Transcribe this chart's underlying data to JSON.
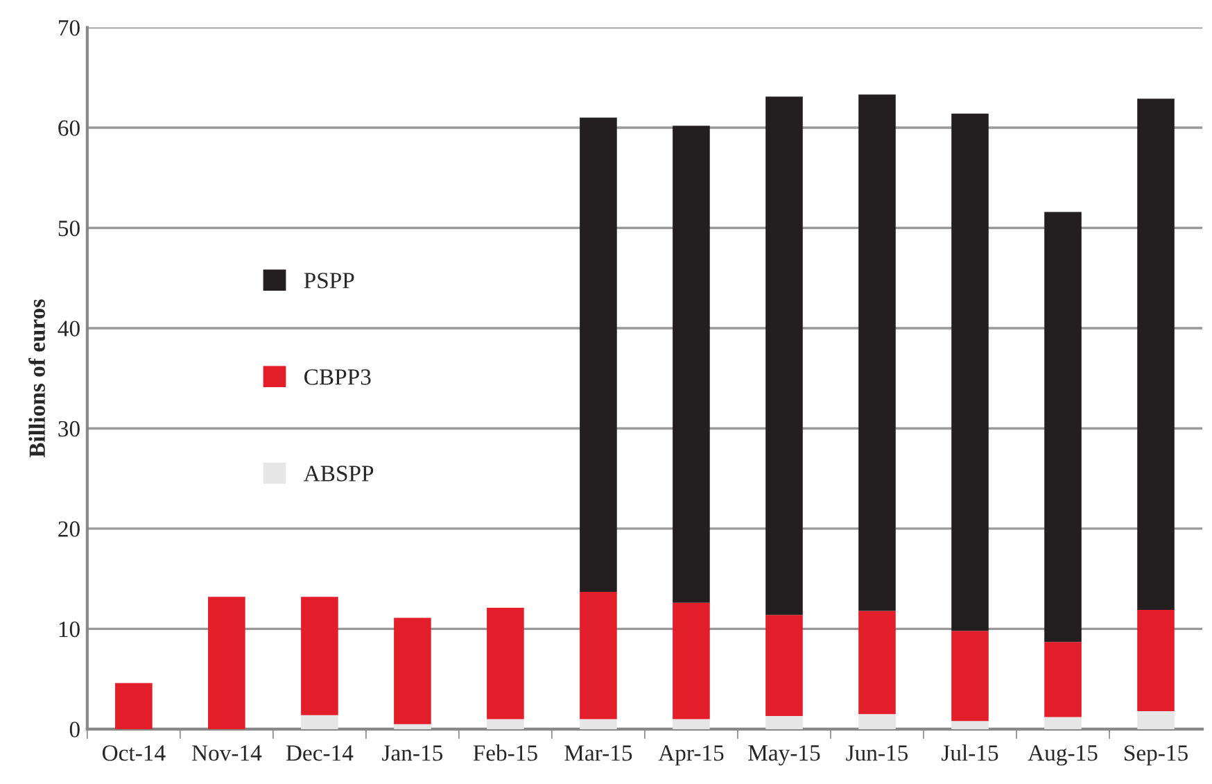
{
  "chart_data": {
    "type": "bar",
    "ylabel": "Billions of euros",
    "stacked": true,
    "categories": [
      "Oct-14",
      "Nov-14",
      "Dec-14",
      "Jan-15",
      "Feb-15",
      "Mar-15",
      "Apr-15",
      "May-15",
      "Jun-15",
      "Jul-15",
      "Aug-15",
      "Sep-15"
    ],
    "series": [
      {
        "name": "ABSPP",
        "color": "#e6e6e6",
        "values": [
          null,
          null,
          1.4,
          0.5,
          1.0,
          1.0,
          1.0,
          1.3,
          1.5,
          0.8,
          1.2,
          1.8
        ]
      },
      {
        "name": "CBPP3",
        "color": "#e31e2b",
        "values": [
          4.6,
          13.2,
          11.8,
          10.6,
          11.1,
          12.7,
          11.6,
          10.1,
          10.3,
          9.0,
          7.5,
          10.1
        ]
      },
      {
        "name": "PSPP",
        "color": "#231f20",
        "values": [
          null,
          null,
          null,
          null,
          null,
          47.3,
          47.6,
          51.7,
          51.5,
          51.6,
          42.9,
          51.0
        ]
      }
    ],
    "ylim": [
      0,
      70
    ],
    "yticks": [
      0,
      10,
      20,
      30,
      40,
      50,
      60,
      70
    ],
    "grid": "y",
    "legend": "left"
  }
}
